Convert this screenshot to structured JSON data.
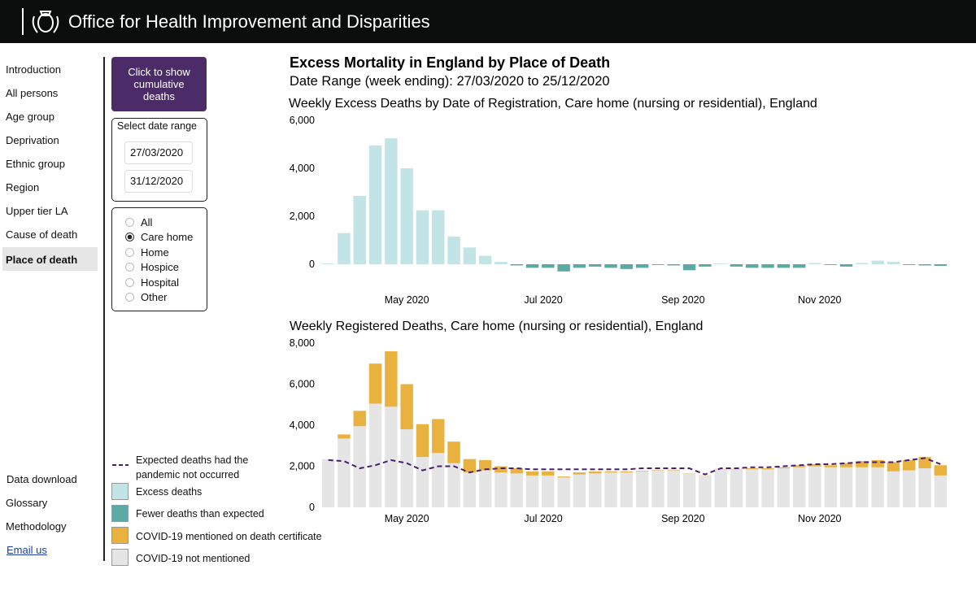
{
  "header": {
    "title": "Office for Health Improvement and Disparities"
  },
  "nav": {
    "items": [
      "Introduction",
      "All persons",
      "Age group",
      "Deprivation",
      "Ethnic group",
      "Region",
      "Upper tier LA",
      "Cause of death",
      "Place of death"
    ],
    "footer_items": [
      "Data download",
      "Glossary",
      "Methodology",
      "Email us"
    ]
  },
  "controls": {
    "button": "Click to show cumulative deaths",
    "date_range_label": "Select date range",
    "start_date": "27/03/2020",
    "end_date": "31/12/2020",
    "place_options": [
      "All",
      "Care home",
      "Home",
      "Hospice",
      "Hospital",
      "Other"
    ]
  },
  "page_title": "Excess Mortality in England by Place of Death",
  "page_subtitle": "Date Range (week ending): 27/03/2020 to 25/12/2020",
  "chart_data": [
    {
      "type": "bar",
      "title": "Weekly Excess Deaths by Date of Registration, Care home (nursing or residential), England",
      "x": [
        1,
        2,
        3,
        4,
        5,
        6,
        7,
        8,
        9,
        10,
        11,
        12,
        13,
        14,
        15,
        16,
        17,
        18,
        19,
        20,
        21,
        22,
        23,
        24,
        25,
        26,
        27,
        28,
        29,
        30,
        31,
        32,
        33,
        34,
        35,
        36,
        37,
        38,
        39,
        40
      ],
      "values": [
        30,
        1300,
        2850,
        4950,
        5250,
        4000,
        2250,
        2250,
        1150,
        700,
        350,
        100,
        -50,
        -150,
        -150,
        -300,
        -150,
        -100,
        -150,
        -200,
        -150,
        -30,
        -50,
        -250,
        -100,
        30,
        -100,
        -150,
        -150,
        -150,
        -150,
        50,
        -30,
        -100,
        50,
        150,
        100,
        -30,
        -50,
        -70
      ],
      "positive": {
        "name": "Excess deaths",
        "color": "#c2e4e6"
      },
      "negative": {
        "name": "Fewer deaths than expected",
        "color": "#5ca9a6"
      },
      "xlim": [
        0.5,
        40.5
      ],
      "xticks": [
        {
          "value": 6,
          "label": "May 2020"
        },
        {
          "value": 14.7,
          "label": "Jul 2020"
        },
        {
          "value": 23.6,
          "label": "Sep 2020"
        },
        {
          "value": 32.3,
          "label": "Nov 2020"
        }
      ],
      "ylim": [
        -600,
        6000
      ],
      "yticks": [
        0,
        {
          "value": 2000,
          "label": "2,000"
        },
        {
          "value": 4000,
          "label": "4,000"
        },
        {
          "value": 6000,
          "label": "6,000"
        }
      ]
    },
    {
      "type": "stacked-bar",
      "title": "Weekly Registered Deaths, Care home (nursing or residential), England",
      "x": [
        1,
        2,
        3,
        4,
        5,
        6,
        7,
        8,
        9,
        10,
        11,
        12,
        13,
        14,
        15,
        16,
        17,
        18,
        19,
        20,
        21,
        22,
        23,
        24,
        25,
        26,
        27,
        28,
        29,
        30,
        31,
        32,
        33,
        34,
        35,
        36,
        37,
        38,
        39,
        40
      ],
      "series": [
        {
          "name": "COVID-19 not mentioned",
          "color": "#e5e5e5",
          "values": [
            2350,
            3350,
            3950,
            5050,
            4900,
            3800,
            2450,
            2650,
            2150,
            1700,
            1800,
            1700,
            1650,
            1550,
            1550,
            1450,
            1600,
            1650,
            1700,
            1700,
            1750,
            1800,
            1800,
            1650,
            1550,
            1850,
            1850,
            1850,
            1850,
            1900,
            1950,
            2000,
            1950,
            1950,
            1950,
            1950,
            1750,
            1800,
            1900,
            1550
          ]
        },
        {
          "name": "COVID-19 mentioned on death certificate",
          "color": "#e9b23f",
          "values": [
            0,
            200,
            750,
            1950,
            2700,
            2200,
            1600,
            1650,
            1050,
            650,
            500,
            300,
            250,
            200,
            200,
            50,
            100,
            100,
            50,
            50,
            30,
            20,
            30,
            10,
            10,
            20,
            20,
            50,
            50,
            50,
            100,
            100,
            100,
            200,
            300,
            350,
            450,
            500,
            550,
            500
          ]
        },
        {
          "name": "Expected deaths had the pandemic not occurred",
          "color": "#4b1f6f",
          "type": "line",
          "dashed": true,
          "values": [
            2300,
            2250,
            1900,
            2050,
            2300,
            2150,
            1800,
            2000,
            2000,
            1700,
            1850,
            1900,
            1900,
            1850,
            1850,
            1850,
            1850,
            1850,
            1850,
            1850,
            1900,
            1900,
            1900,
            1900,
            1600,
            1900,
            1900,
            1950,
            1950,
            2000,
            2050,
            2100,
            2100,
            2150,
            2200,
            2200,
            2200,
            2300,
            2400,
            2100
          ]
        }
      ],
      "xlim": [
        0.5,
        40.5
      ],
      "xticks": [
        {
          "value": 6,
          "label": "May 2020"
        },
        {
          "value": 14.7,
          "label": "Jul 2020"
        },
        {
          "value": 23.6,
          "label": "Sep 2020"
        },
        {
          "value": 32.3,
          "label": "Nov 2020"
        }
      ],
      "ylim": [
        0,
        8000
      ],
      "yticks": [
        0,
        {
          "value": 2000,
          "label": "2,000"
        },
        {
          "value": 4000,
          "label": "4,000"
        },
        {
          "value": 6000,
          "label": "6,000"
        },
        {
          "value": 8000,
          "label": "8,000"
        }
      ]
    }
  ]
}
